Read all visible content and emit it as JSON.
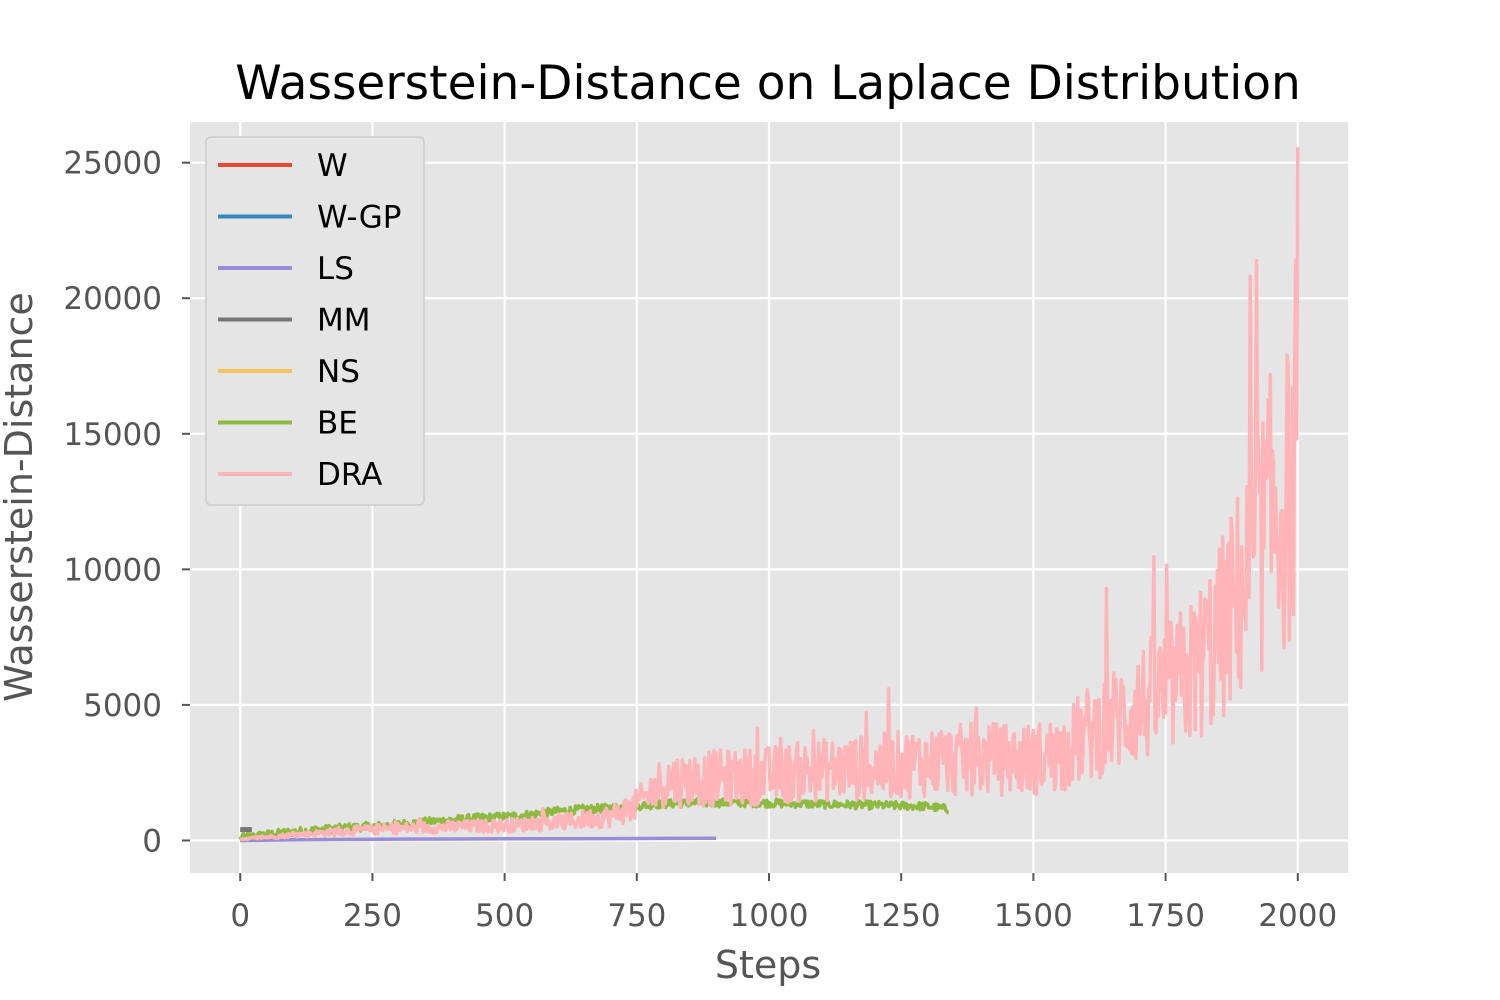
{
  "chart_data": {
    "type": "line",
    "title": "Wasserstein-Distance on Laplace Distribution",
    "xlabel": "Steps",
    "ylabel": "Wasserstein-Distance",
    "xlim": [
      -95,
      2095
    ],
    "ylim": [
      -1200,
      26500
    ],
    "xticks": [
      0,
      250,
      500,
      750,
      1000,
      1250,
      1500,
      1750,
      2000
    ],
    "yticks": [
      0,
      5000,
      10000,
      15000,
      20000,
      25000
    ],
    "grid": true,
    "legend_position": "top-left",
    "background": "#e5e5e5",
    "series": [
      {
        "name": "W",
        "color": "#e24a33",
        "points": [
          [
            0,
            60
          ],
          [
            10,
            60
          ]
        ]
      },
      {
        "name": "W-GP",
        "color": "#348abd",
        "points": [
          [
            0,
            40
          ],
          [
            10,
            40
          ]
        ]
      },
      {
        "name": "LS",
        "color": "#988ed5",
        "points": [
          [
            0,
            0
          ],
          [
            100,
            25
          ],
          [
            200,
            40
          ],
          [
            300,
            50
          ],
          [
            400,
            55
          ],
          [
            500,
            60
          ],
          [
            600,
            65
          ],
          [
            700,
            70
          ],
          [
            800,
            75
          ],
          [
            900,
            80
          ]
        ]
      },
      {
        "name": "MM",
        "color": "#777777",
        "points": [
          [
            0,
            400
          ],
          [
            22,
            400
          ]
        ]
      },
      {
        "name": "NS",
        "color": "#fbc15e",
        "points": [
          [
            0,
            50
          ],
          [
            10,
            50
          ]
        ]
      },
      {
        "name": "BE",
        "color": "#8eba42",
        "points": [
          [
            0,
            100
          ],
          [
            50,
            220
          ],
          [
            100,
            320
          ],
          [
            150,
            400
          ],
          [
            200,
            470
          ],
          [
            250,
            520
          ],
          [
            300,
            600
          ],
          [
            350,
            680
          ],
          [
            400,
            760
          ],
          [
            450,
            830
          ],
          [
            500,
            880
          ],
          [
            550,
            960
          ],
          [
            600,
            1080
          ],
          [
            650,
            1150
          ],
          [
            700,
            1200
          ],
          [
            750,
            1280
          ],
          [
            800,
            1350
          ],
          [
            850,
            1380
          ],
          [
            900,
            1400
          ],
          [
            950,
            1390
          ],
          [
            1000,
            1380
          ],
          [
            1050,
            1360
          ],
          [
            1100,
            1340
          ],
          [
            1150,
            1320
          ],
          [
            1200,
            1300
          ],
          [
            1250,
            1280
          ],
          [
            1300,
            1260
          ],
          [
            1340,
            1150
          ]
        ],
        "noise": 150
      },
      {
        "name": "DRA",
        "color": "#ffb5b8",
        "points": [
          [
            0,
            50
          ],
          [
            100,
            200
          ],
          [
            200,
            350
          ],
          [
            300,
            450
          ],
          [
            400,
            500
          ],
          [
            500,
            550
          ],
          [
            600,
            650
          ],
          [
            700,
            900
          ],
          [
            750,
            1300
          ],
          [
            800,
            2200
          ],
          [
            900,
            2300
          ],
          [
            1000,
            2400
          ],
          [
            1100,
            2600
          ],
          [
            1200,
            2700
          ],
          [
            1300,
            2900
          ],
          [
            1400,
            3000
          ],
          [
            1500,
            3000
          ],
          [
            1550,
            3200
          ],
          [
            1600,
            3900
          ],
          [
            1650,
            4400
          ],
          [
            1700,
            5000
          ],
          [
            1750,
            5500
          ],
          [
            1800,
            6200
          ],
          [
            1850,
            7500
          ],
          [
            1900,
            9500
          ],
          [
            1950,
            12000
          ],
          [
            2000,
            13000
          ]
        ],
        "noise": 0.45
      }
    ]
  }
}
